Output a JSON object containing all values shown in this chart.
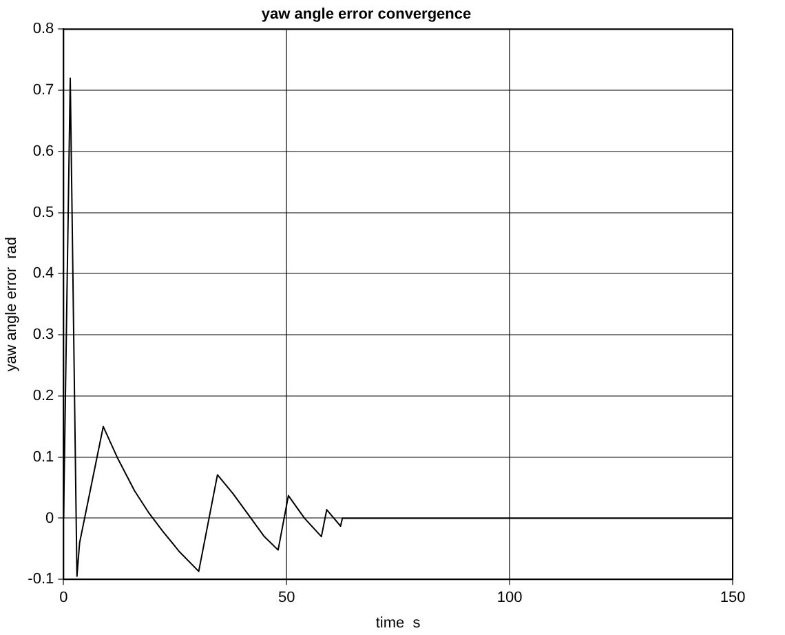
{
  "chart_data": {
    "type": "line",
    "title": "yaw angle error convergence",
    "xlabel": "time  s",
    "ylabel": "yaw angle error  rad",
    "xlim": [
      0,
      150
    ],
    "xticks": [
      0,
      50,
      100,
      150
    ],
    "ylim": [
      -0.1,
      0.8
    ],
    "yticks": [
      -0.1,
      0,
      0.1,
      0.2,
      0.3,
      0.4,
      0.5,
      0.6,
      0.7,
      0.8
    ],
    "grid": true,
    "legend": false,
    "marker": "none",
    "line_style": "solid",
    "series": [
      {
        "color": "#000000",
        "x": [
          0,
          1.5,
          3.0,
          3.6,
          8.9,
          12,
          15.9,
          19,
          22.2,
          26,
          30.3,
          34.5,
          38,
          42,
          45,
          48.1,
          50.4,
          54,
          57.8,
          59.0,
          62.1,
          62.5,
          150
        ],
        "values": [
          0,
          0.72,
          -0.095,
          -0.04,
          0.15,
          0.1,
          0.045,
          0.01,
          -0.021,
          -0.055,
          -0.087,
          0.071,
          0.04,
          0.0,
          -0.03,
          -0.052,
          0.037,
          0.0,
          -0.03,
          0.014,
          -0.013,
          0,
          0
        ]
      }
    ]
  }
}
